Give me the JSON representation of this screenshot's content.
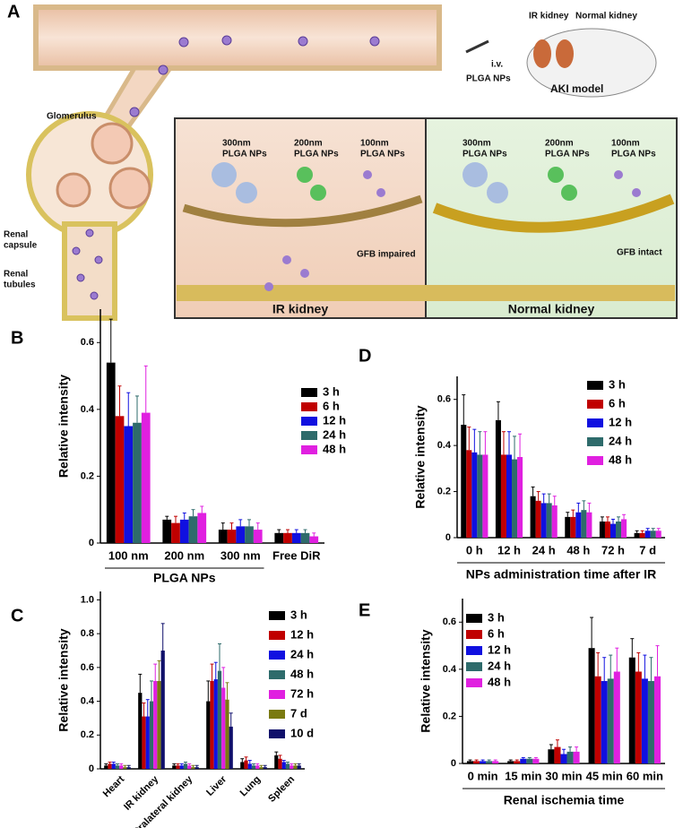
{
  "diagram": {
    "panel": "A",
    "mouse_labels": [
      "IR kidney",
      "Normal kidney"
    ],
    "injection": "i.v.",
    "injected": "PLGA NPs",
    "model": "AKI model",
    "glomerulus": "Glomerulus",
    "renal_capsule": [
      "Renal",
      "capsule"
    ],
    "renal_tubules": [
      "Renal",
      "tubules"
    ],
    "left_panel": {
      "np300": [
        "300nm",
        "PLGA NPs"
      ],
      "np200": [
        "200nm",
        "PLGA NPs"
      ],
      "np100": [
        "100nm",
        "PLGA NPs"
      ],
      "gfb": "GFB impaired",
      "title": "IR kidney"
    },
    "right_panel": {
      "np300": [
        "300nm",
        "PLGA NPs"
      ],
      "np200": [
        "200nm",
        "PLGA NPs"
      ],
      "np100": [
        "100nm",
        "PLGA NPs"
      ],
      "gfb": "GFB intact",
      "title": "Normal kidney"
    }
  },
  "chart_data": [
    {
      "type": "bar",
      "panel": "B",
      "ylabel": "Relative intensity",
      "group_label": "PLGA NPs",
      "categories": [
        "100 nm",
        "200 nm",
        "300 nm",
        "Free DiR"
      ],
      "ylim": [
        0,
        0.7
      ],
      "yticks": [
        0,
        0.2,
        0.4,
        0.6
      ],
      "series": [
        {
          "name": "3 h",
          "color": "#000000",
          "values": [
            0.54,
            0.07,
            0.04,
            0.03
          ],
          "errors": [
            0.13,
            0.01,
            0.02,
            0.01
          ]
        },
        {
          "name": "6 h",
          "color": "#c00000",
          "values": [
            0.38,
            0.06,
            0.04,
            0.03
          ],
          "errors": [
            0.09,
            0.02,
            0.02,
            0.01
          ]
        },
        {
          "name": "12 h",
          "color": "#1010e0",
          "values": [
            0.35,
            0.07,
            0.05,
            0.03
          ],
          "errors": [
            0.1,
            0.02,
            0.02,
            0.01
          ]
        },
        {
          "name": "24 h",
          "color": "#2e6b6b",
          "values": [
            0.36,
            0.08,
            0.05,
            0.03
          ],
          "errors": [
            0.08,
            0.02,
            0.02,
            0.01
          ]
        },
        {
          "name": "48 h",
          "color": "#e020e0",
          "values": [
            0.39,
            0.09,
            0.04,
            0.02
          ],
          "errors": [
            0.14,
            0.02,
            0.02,
            0.01
          ]
        }
      ]
    },
    {
      "type": "bar",
      "panel": "C",
      "ylabel": "Relative intensity",
      "categories": [
        "Heart",
        "IR kidney",
        "Contralateral kidney",
        "Liver",
        "Lung",
        "Spleen"
      ],
      "ylim": [
        0,
        1.05
      ],
      "yticks": [
        0,
        0.2,
        0.4,
        0.6,
        0.8,
        {
          "value": 1,
          "label": "1.0"
        }
      ],
      "series": [
        {
          "name": "3 h",
          "color": "#000000",
          "values": [
            0.02,
            0.45,
            0.02,
            0.4,
            0.04,
            0.08
          ],
          "errors": [
            0.01,
            0.11,
            0.01,
            0.12,
            0.02,
            0.02
          ]
        },
        {
          "name": "12 h",
          "color": "#c00000",
          "values": [
            0.03,
            0.31,
            0.02,
            0.52,
            0.05,
            0.06
          ],
          "errors": [
            0.01,
            0.08,
            0.01,
            0.1,
            0.02,
            0.02
          ]
        },
        {
          "name": "24 h",
          "color": "#1010e0",
          "values": [
            0.03,
            0.31,
            0.02,
            0.53,
            0.03,
            0.04
          ],
          "errors": [
            0.01,
            0.1,
            0.01,
            0.1,
            0.02,
            0.01
          ]
        },
        {
          "name": "48 h",
          "color": "#2e6b6b",
          "values": [
            0.02,
            0.4,
            0.03,
            0.58,
            0.02,
            0.03
          ],
          "errors": [
            0.01,
            0.12,
            0.01,
            0.16,
            0.01,
            0.01
          ]
        },
        {
          "name": "72 h",
          "color": "#e020e0",
          "values": [
            0.02,
            0.52,
            0.02,
            0.48,
            0.02,
            0.02
          ],
          "errors": [
            0.01,
            0.1,
            0.01,
            0.12,
            0.01,
            0.01
          ]
        },
        {
          "name": "7 d",
          "color": "#7a7a10",
          "values": [
            0.01,
            0.52,
            0.01,
            0.41,
            0.01,
            0.02
          ],
          "errors": [
            0.01,
            0.12,
            0.01,
            0.1,
            0.01,
            0.01
          ]
        },
        {
          "name": "10 d",
          "color": "#10106b",
          "values": [
            0.01,
            0.7,
            0.01,
            0.25,
            0.01,
            0.02
          ],
          "errors": [
            0.01,
            0.16,
            0.01,
            0.08,
            0.01,
            0.01
          ]
        }
      ]
    },
    {
      "type": "bar",
      "panel": "D",
      "ylabel": "Relative intensity",
      "xlabel": "NPs administration time after IR",
      "categories": [
        "0 h",
        "12 h",
        "24 h",
        "48 h",
        "72 h",
        "7 d"
      ],
      "ylim": [
        0,
        0.7
      ],
      "yticks": [
        0,
        0.2,
        0.4,
        0.6
      ],
      "series": [
        {
          "name": "3 h",
          "color": "#000000",
          "values": [
            0.49,
            0.51,
            0.18,
            0.09,
            0.07,
            0.02
          ],
          "errors": [
            0.13,
            0.08,
            0.04,
            0.02,
            0.02,
            0.01
          ]
        },
        {
          "name": "6 h",
          "color": "#c00000",
          "values": [
            0.38,
            0.36,
            0.16,
            0.09,
            0.07,
            0.02
          ],
          "errors": [
            0.1,
            0.1,
            0.04,
            0.03,
            0.02,
            0.01
          ]
        },
        {
          "name": "12 h",
          "color": "#1010e0",
          "values": [
            0.37,
            0.36,
            0.15,
            0.11,
            0.06,
            0.03
          ],
          "errors": [
            0.1,
            0.1,
            0.04,
            0.04,
            0.02,
            0.01
          ]
        },
        {
          "name": "24 h",
          "color": "#2e6b6b",
          "values": [
            0.36,
            0.34,
            0.15,
            0.12,
            0.07,
            0.03
          ],
          "errors": [
            0.1,
            0.1,
            0.04,
            0.04,
            0.02,
            0.01
          ]
        },
        {
          "name": "48 h",
          "color": "#e020e0",
          "values": [
            0.36,
            0.35,
            0.14,
            0.11,
            0.08,
            0.03
          ],
          "errors": [
            0.1,
            0.1,
            0.04,
            0.04,
            0.02,
            0.01
          ]
        }
      ]
    },
    {
      "type": "bar",
      "panel": "E",
      "ylabel": "Relative intensity",
      "xlabel": "Renal ischemia time",
      "categories": [
        "0 min",
        "15 min",
        "30 min",
        "45 min",
        "60 min"
      ],
      "ylim": [
        0,
        0.7
      ],
      "yticks": [
        0,
        0.2,
        0.4,
        0.6
      ],
      "series": [
        {
          "name": "3 h",
          "color": "#000000",
          "values": [
            0.01,
            0.01,
            0.06,
            0.49,
            0.45
          ],
          "errors": [
            0.005,
            0.005,
            0.02,
            0.13,
            0.08
          ]
        },
        {
          "name": "6 h",
          "color": "#c00000",
          "values": [
            0.01,
            0.01,
            0.07,
            0.37,
            0.39
          ],
          "errors": [
            0.005,
            0.005,
            0.03,
            0.1,
            0.08
          ]
        },
        {
          "name": "12 h",
          "color": "#1010e0",
          "values": [
            0.01,
            0.02,
            0.04,
            0.35,
            0.36
          ],
          "errors": [
            0.005,
            0.005,
            0.02,
            0.1,
            0.1
          ]
        },
        {
          "name": "24 h",
          "color": "#2e6b6b",
          "values": [
            0.01,
            0.02,
            0.05,
            0.36,
            0.35
          ],
          "errors": [
            0.005,
            0.005,
            0.02,
            0.1,
            0.1
          ]
        },
        {
          "name": "48 h",
          "color": "#e020e0",
          "values": [
            0.01,
            0.02,
            0.05,
            0.39,
            0.37
          ],
          "errors": [
            0.005,
            0.005,
            0.02,
            0.1,
            0.13
          ]
        }
      ]
    }
  ]
}
